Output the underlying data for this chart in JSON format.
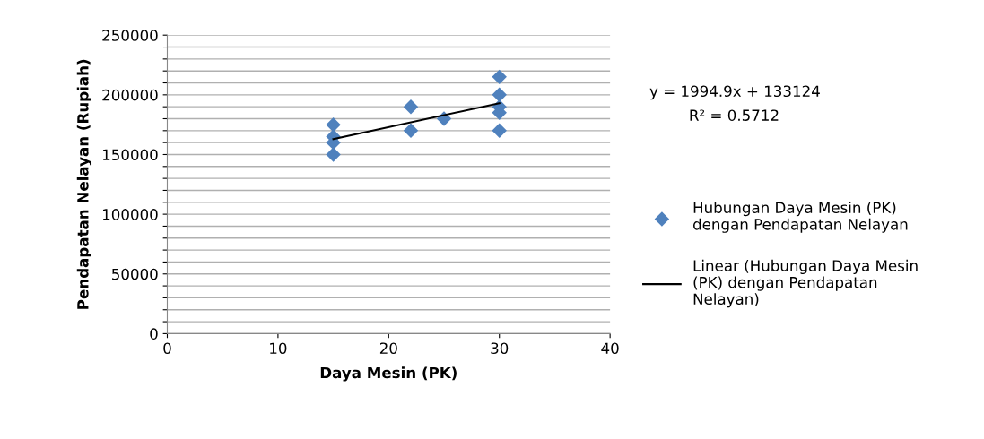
{
  "chart_data": {
    "type": "scatter",
    "xlabel": "Daya Mesin (PK)",
    "ylabel": "Pendapatan Nelayan (Rupiah)",
    "x": [
      15,
      15,
      15,
      15,
      22,
      22,
      25,
      30,
      30,
      30,
      30,
      30
    ],
    "series": [
      {
        "name": "Hubungan Daya Mesin (PK) dengan Pendapatan Nelayan",
        "color": "#4f81bd",
        "marker": "diamond",
        "values": [
          175000,
          165000,
          160000,
          150000,
          190000,
          170000,
          180000,
          215000,
          200000,
          190000,
          185000,
          170000
        ]
      },
      {
        "type": "line",
        "name": "Linear (Hubungan Daya Mesin (PK) dengan Pendapatan Nelayan)",
        "color": "#000000",
        "marker": "none",
        "line_style": "solid",
        "x": [
          15,
          30
        ],
        "values": [
          163000,
          193000
        ]
      }
    ],
    "annotations": [
      "y = 1994.9x + 133124",
      "R² = 0.5712"
    ],
    "xlim": [
      0,
      40
    ],
    "xticks": [
      0,
      10,
      20,
      30,
      40
    ],
    "ylim": [
      0,
      250000
    ],
    "yticks": [
      0,
      {
        "value": 10000,
        "label": null
      },
      {
        "value": 20000,
        "label": null
      },
      {
        "value": 30000,
        "label": null
      },
      {
        "value": 40000,
        "label": null
      },
      50000,
      {
        "value": 60000,
        "label": null
      },
      {
        "value": 70000,
        "label": null
      },
      {
        "value": 80000,
        "label": null
      },
      {
        "value": 90000,
        "label": null
      },
      100000,
      {
        "value": 110000,
        "label": null
      },
      {
        "value": 120000,
        "label": null
      },
      {
        "value": 130000,
        "label": null
      },
      {
        "value": 140000,
        "label": null
      },
      150000,
      {
        "value": 160000,
        "label": null
      },
      {
        "value": 170000,
        "label": null
      },
      {
        "value": 180000,
        "label": null
      },
      {
        "value": 190000,
        "label": null
      },
      200000,
      {
        "value": 210000,
        "label": null
      },
      {
        "value": 220000,
        "label": null
      },
      {
        "value": 230000,
        "label": null
      },
      {
        "value": 240000,
        "label": null
      },
      250000
    ],
    "grid": "y",
    "legend": "right"
  }
}
